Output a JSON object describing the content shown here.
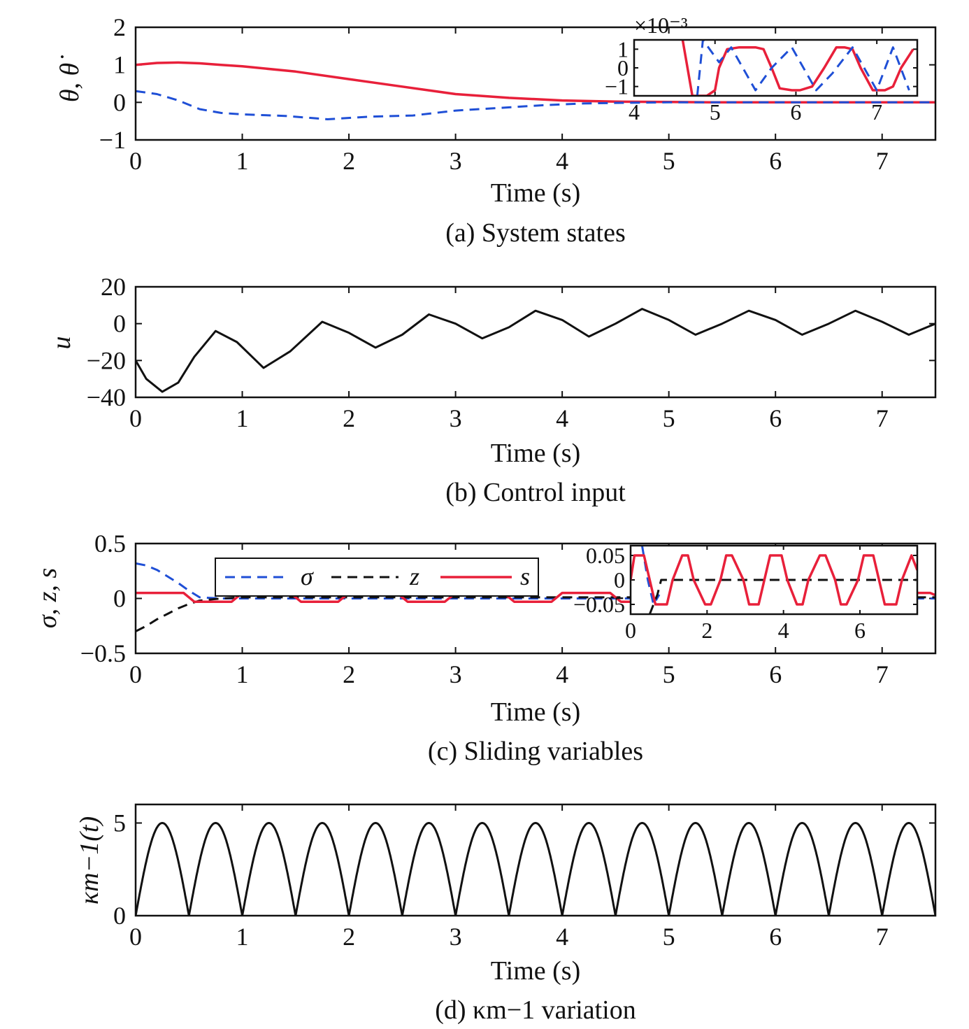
{
  "colors": {
    "theta": "#e8203a",
    "theta_dot": "#1f4fd6",
    "sigma": "#1f4fd6",
    "z": "#111111",
    "s": "#e8203a",
    "u": "#111111",
    "kappa": "#111111"
  },
  "chart_data": [
    {
      "id": "a",
      "type": "line",
      "caption": "(a) System states",
      "xlabel": "Time (s)",
      "ylabel": "θ, θ̇",
      "xlim": [
        0,
        7.5
      ],
      "ylim": [
        -1,
        2
      ],
      "xticks": [
        "0",
        "1",
        "2",
        "3",
        "4",
        "5",
        "6",
        "7"
      ],
      "yticks": [
        "2",
        "1",
        "0",
        "−1"
      ],
      "series": [
        {
          "key": "theta",
          "x": [
            0,
            0.2,
            0.4,
            0.6,
            0.8,
            1.0,
            1.5,
            2.0,
            2.5,
            3.0,
            3.5,
            4.0,
            4.5,
            5.0,
            5.5,
            6.0,
            6.5,
            7.0,
            7.5
          ],
          "y": [
            1.0,
            1.05,
            1.06,
            1.04,
            1.0,
            0.96,
            0.82,
            0.62,
            0.42,
            0.22,
            0.12,
            0.05,
            0.02,
            0.01,
            0,
            0,
            0,
            0,
            0
          ]
        },
        {
          "key": "theta_dot",
          "x": [
            0,
            0.2,
            0.4,
            0.6,
            0.8,
            1.0,
            1.4,
            1.8,
            2.2,
            2.6,
            3.0,
            3.4,
            3.8,
            4.2,
            4.6,
            5.0,
            5.5,
            6.0,
            6.5,
            7.0,
            7.5
          ],
          "y": [
            0.3,
            0.22,
            0.05,
            -0.18,
            -0.28,
            -0.32,
            -0.36,
            -0.45,
            -0.38,
            -0.35,
            -0.22,
            -0.15,
            -0.08,
            -0.03,
            -0.01,
            0,
            0,
            0,
            0,
            0,
            0
          ]
        }
      ],
      "inset": {
        "exponent_label": "×10⁻³",
        "xlim": [
          4,
          7.5
        ],
        "ylim": [
          -1.5,
          1.5
        ],
        "xticks": [
          "4",
          "5",
          "6",
          "7"
        ],
        "yticks": [
          "1",
          "0",
          "−1"
        ],
        "series": [
          {
            "key": "theta",
            "x": [
              4.6,
              4.72,
              4.8,
              4.9,
              5.0,
              5.05,
              5.15,
              5.3,
              5.5,
              5.6,
              5.7,
              5.8,
              5.95,
              6.05,
              6.2,
              6.35,
              6.5,
              6.6,
              6.7,
              6.8,
              6.95,
              7.1,
              7.2,
              7.3,
              7.45
            ],
            "y": [
              1.5,
              -1.5,
              -1.5,
              -1.5,
              -1.2,
              0,
              1.0,
              1.1,
              1.1,
              1.0,
              0,
              -1.1,
              -1.2,
              -1.2,
              -1.0,
              0,
              1.1,
              1.1,
              1.0,
              0,
              -1.2,
              -1.2,
              -1.0,
              0,
              1.0
            ]
          },
          {
            "key": "theta_dot",
            "x": [
              4.78,
              4.85,
              5.05,
              5.2,
              5.5,
              5.7,
              5.95,
              6.25,
              6.45,
              6.7,
              7.0,
              7.2,
              7.4
            ],
            "y": [
              -1.5,
              1.5,
              0.3,
              1.1,
              -1.2,
              0,
              1.1,
              -1.2,
              -0.3,
              1.1,
              -1.2,
              1.1,
              -1.2
            ]
          }
        ]
      }
    },
    {
      "id": "b",
      "type": "line",
      "caption": "(b) Control input",
      "xlabel": "Time (s)",
      "ylabel": "u",
      "xlim": [
        0,
        7.5
      ],
      "ylim": [
        -40,
        20
      ],
      "xticks": [
        "0",
        "1",
        "2",
        "3",
        "4",
        "5",
        "6",
        "7"
      ],
      "yticks": [
        "20",
        "0",
        "−20",
        "−40"
      ],
      "series": [
        {
          "key": "u",
          "x": [
            0,
            0.1,
            0.25,
            0.4,
            0.55,
            0.75,
            0.95,
            1.2,
            1.45,
            1.75,
            2.0,
            2.25,
            2.5,
            2.75,
            3.0,
            3.25,
            3.5,
            3.75,
            4.0,
            4.25,
            4.5,
            4.75,
            5.0,
            5.25,
            5.5,
            5.75,
            6.0,
            6.25,
            6.5,
            6.75,
            7.0,
            7.25,
            7.5
          ],
          "y": [
            -20,
            -30,
            -37,
            -32,
            -18,
            -4,
            -10,
            -24,
            -15,
            1,
            -5,
            -13,
            -6,
            5,
            0,
            -8,
            -2,
            7,
            2,
            -7,
            0,
            8,
            2,
            -6,
            0,
            7,
            2,
            -6,
            0,
            7,
            1,
            -6,
            0
          ]
        }
      ]
    },
    {
      "id": "c",
      "type": "line",
      "caption": "(c) Sliding variables",
      "xlabel": "Time (s)",
      "ylabel": "σ, z, s",
      "xlim": [
        0,
        7.5
      ],
      "ylim": [
        -0.5,
        0.5
      ],
      "xticks": [
        "0",
        "1",
        "2",
        "3",
        "4",
        "5",
        "6",
        "7"
      ],
      "yticks": [
        "0.5",
        "0",
        "−0.5"
      ],
      "legend": {
        "position": "top-center",
        "entries": [
          "σ",
          "z",
          "s"
        ]
      },
      "series": [
        {
          "key": "sigma",
          "x": [
            0,
            0.1,
            0.2,
            0.3,
            0.4,
            0.5,
            0.6,
            0.8,
            1.0,
            2.0,
            3.0,
            4.0,
            5.0,
            6.0,
            7.0,
            7.5
          ],
          "y": [
            0.32,
            0.3,
            0.26,
            0.2,
            0.14,
            0.07,
            0.01,
            0.0,
            0,
            0,
            0,
            0,
            0,
            0,
            0,
            0
          ]
        },
        {
          "key": "z",
          "x": [
            0,
            0.1,
            0.2,
            0.3,
            0.4,
            0.5,
            0.6,
            0.8,
            1.0,
            2.0,
            3.0,
            4.0,
            5.0,
            6.0,
            7.0,
            7.5
          ],
          "y": [
            -0.3,
            -0.25,
            -0.19,
            -0.14,
            -0.09,
            -0.05,
            -0.02,
            0.0,
            0.01,
            0.01,
            0.01,
            0.01,
            0.01,
            0.01,
            0.01,
            0.01
          ]
        },
        {
          "key": "s",
          "x": [
            0,
            0.45,
            0.55,
            0.9,
            1.0,
            1.45,
            1.55,
            1.9,
            2.0,
            2.45,
            2.55,
            2.9,
            3.0,
            3.45,
            3.55,
            3.9,
            4.0,
            4.45,
            4.55,
            4.9,
            5.0,
            5.45,
            5.55,
            5.9,
            6.0,
            6.45,
            6.55,
            6.9,
            7.0,
            7.45,
            7.5
          ],
          "y": [
            0.05,
            0.05,
            -0.03,
            -0.03,
            0.05,
            0.05,
            -0.03,
            -0.03,
            0.05,
            0.05,
            -0.03,
            -0.03,
            0.05,
            0.05,
            -0.03,
            -0.03,
            0.05,
            0.05,
            -0.03,
            -0.03,
            0.05,
            0.05,
            -0.03,
            -0.03,
            0.05,
            0.05,
            -0.03,
            -0.03,
            0.05,
            0.05,
            0.03
          ]
        }
      ],
      "inset": {
        "xlim": [
          0,
          7.5
        ],
        "ylim": [
          -0.07,
          0.07
        ],
        "xticks": [
          "0",
          "2",
          "4",
          "6"
        ],
        "yticks": [
          "0.05",
          "0",
          "−0.05"
        ],
        "series": [
          {
            "key": "sigma",
            "x": [
              0.3,
              0.45,
              0.6,
              0.75
            ],
            "y": [
              0.07,
              0.0,
              -0.05,
              -0.03
            ]
          },
          {
            "key": "z",
            "x": [
              0.5,
              0.7,
              0.8,
              1.0,
              7.5
            ],
            "y": [
              -0.07,
              -0.03,
              0.0,
              0.0,
              0.0
            ]
          },
          {
            "key": "s",
            "x": [
              0,
              0.1,
              0.35,
              0.5,
              0.65,
              0.95,
              1.1,
              1.35,
              1.5,
              1.65,
              1.95,
              2.1,
              2.35,
              2.5,
              2.65,
              2.95,
              3.1,
              3.35,
              3.5,
              3.65,
              3.95,
              4.1,
              4.35,
              4.5,
              4.65,
              4.95,
              5.1,
              5.35,
              5.5,
              5.65,
              5.95,
              6.1,
              6.35,
              6.5,
              6.65,
              6.95,
              7.1,
              7.35,
              7.5
            ],
            "y": [
              0.0,
              0.05,
              0.05,
              0.0,
              -0.05,
              -0.05,
              0.0,
              0.05,
              0.05,
              0.0,
              -0.05,
              -0.05,
              0.0,
              0.05,
              0.05,
              0.0,
              -0.05,
              -0.05,
              0.0,
              0.05,
              0.05,
              0.0,
              -0.05,
              -0.05,
              0.0,
              0.05,
              0.05,
              0.0,
              -0.05,
              -0.05,
              0.0,
              0.05,
              0.05,
              0.0,
              -0.05,
              -0.05,
              0.0,
              0.05,
              0.02
            ]
          }
        ]
      }
    },
    {
      "id": "d",
      "type": "line",
      "caption": "(d) κm−1 variation",
      "xlabel": "Time (s)",
      "ylabel": "κm−1(t)",
      "xlim": [
        0,
        7.5
      ],
      "ylim": [
        0,
        6
      ],
      "xticks": [
        "0",
        "1",
        "2",
        "3",
        "4",
        "5",
        "6",
        "7"
      ],
      "yticks": [
        "5",
        "0"
      ],
      "series": [
        {
          "key": "kappa",
          "function": "5*|sin(2*pi*t)|",
          "x": [
            0,
            0.25,
            0.5,
            0.75,
            1.0
          ],
          "y": [
            0,
            5,
            0,
            5,
            0
          ]
        }
      ]
    }
  ]
}
